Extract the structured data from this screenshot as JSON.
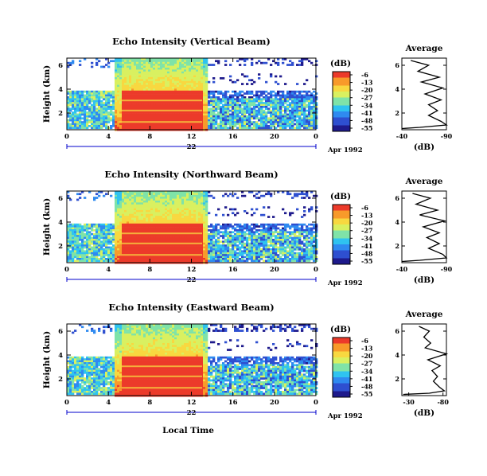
{
  "colors": {
    "scale": [
      "#1e1a8c",
      "#2e4fd0",
      "#2f8af0",
      "#2fc3f0",
      "#7fe3a8",
      "#d9f060",
      "#f8d840",
      "#f89a2a",
      "#ec3a2a"
    ],
    "axis": "#000000",
    "date_bar": "#0000cc"
  },
  "chart_data": [
    {
      "type": "heatmap",
      "title": "Echo Intensity (Vertical Beam)",
      "ylabel": "Height (km)",
      "yticks": [
        "2",
        "4",
        "6"
      ],
      "ylim": [
        0.6,
        6.6
      ],
      "xticks": [
        "0",
        "4",
        "8",
        "12",
        "16",
        "20",
        "0"
      ],
      "xlim": [
        0,
        24
      ],
      "date_center": "22",
      "date_right": "Apr 1992",
      "colorbar": {
        "unit": "(dB)",
        "ticks": [
          "-6",
          "-13",
          "-20",
          "-27",
          "-34",
          "-41",
          "-48",
          "-55"
        ]
      },
      "rain_hours": [
        4.5,
        13.5
      ],
      "average_profile": {
        "title": "Average",
        "xlabel": "(dB)",
        "xticks": [
          "-40",
          "-90"
        ],
        "xlim": [
          -40,
          -90
        ],
        "ylim": [
          0.6,
          6.6
        ],
        "points": [
          [
            -50,
            6.4
          ],
          [
            -70,
            6.0
          ],
          [
            -58,
            5.5
          ],
          [
            -82,
            5.0
          ],
          [
            -62,
            4.6
          ],
          [
            -86,
            4.1
          ],
          [
            -66,
            3.6
          ],
          [
            -84,
            3.1
          ],
          [
            -70,
            2.7
          ],
          [
            -80,
            2.2
          ],
          [
            -70,
            1.8
          ],
          [
            -84,
            1.3
          ],
          [
            -90,
            1.0
          ],
          [
            -60,
            0.8
          ],
          [
            -40,
            0.7
          ]
        ]
      }
    },
    {
      "type": "heatmap",
      "title": "Echo Intensity (Northward Beam)",
      "ylabel": "Height (km)",
      "yticks": [
        "2",
        "4",
        "6"
      ],
      "ylim": [
        0.6,
        6.6
      ],
      "xticks": [
        "0",
        "4",
        "8",
        "12",
        "16",
        "20",
        "0"
      ],
      "xlim": [
        0,
        24
      ],
      "date_center": "22",
      "date_right": "Apr 1992",
      "colorbar": {
        "unit": "(dB)",
        "ticks": [
          "-6",
          "-13",
          "-20",
          "-27",
          "-34",
          "-41",
          "-48",
          "-55"
        ]
      },
      "rain_hours": [
        4.5,
        13.5
      ],
      "average_profile": {
        "title": "Average",
        "xlabel": "(dB)",
        "xticks": [
          "-40",
          "-90"
        ],
        "xlim": [
          -40,
          -90
        ],
        "ylim": [
          0.6,
          6.6
        ],
        "points": [
          [
            -52,
            6.4
          ],
          [
            -72,
            6.0
          ],
          [
            -56,
            5.5
          ],
          [
            -80,
            5.0
          ],
          [
            -60,
            4.6
          ],
          [
            -88,
            4.1
          ],
          [
            -64,
            3.6
          ],
          [
            -82,
            3.1
          ],
          [
            -68,
            2.7
          ],
          [
            -82,
            2.2
          ],
          [
            -70,
            1.8
          ],
          [
            -86,
            1.3
          ],
          [
            -90,
            1.0
          ],
          [
            -60,
            0.8
          ],
          [
            -40,
            0.7
          ]
        ]
      }
    },
    {
      "type": "heatmap",
      "title": "Echo Intensity (Eastward Beam)",
      "ylabel": "Height (km)",
      "yticks": [
        "2",
        "4",
        "6"
      ],
      "ylim": [
        0.6,
        6.6
      ],
      "xticks": [
        "0",
        "4",
        "8",
        "12",
        "16",
        "20",
        "0"
      ],
      "xlim": [
        0,
        24
      ],
      "date_center": "22",
      "date_right": "Apr 1992",
      "xlabel": "Local Time",
      "colorbar": {
        "unit": "(dB)",
        "ticks": [
          "-6",
          "-13",
          "-20",
          "-27",
          "-34",
          "-41",
          "-48",
          "-55"
        ]
      },
      "rain_hours": [
        4.5,
        13.5
      ],
      "average_profile": {
        "title": "Average",
        "xlabel": "(dB)",
        "xticks": [
          "-30",
          "-80"
        ],
        "xlim": [
          -20,
          -85
        ],
        "ylim": [
          0.6,
          6.6
        ],
        "points": [
          [
            -45,
            6.4
          ],
          [
            -60,
            6.0
          ],
          [
            -52,
            5.5
          ],
          [
            -62,
            5.0
          ],
          [
            -54,
            4.6
          ],
          [
            -85,
            4.1
          ],
          [
            -58,
            3.6
          ],
          [
            -76,
            3.1
          ],
          [
            -64,
            2.7
          ],
          [
            -72,
            2.2
          ],
          [
            -66,
            1.8
          ],
          [
            -75,
            1.3
          ],
          [
            -82,
            1.0
          ],
          [
            -60,
            0.8
          ],
          [
            -22,
            0.7
          ]
        ]
      }
    }
  ]
}
